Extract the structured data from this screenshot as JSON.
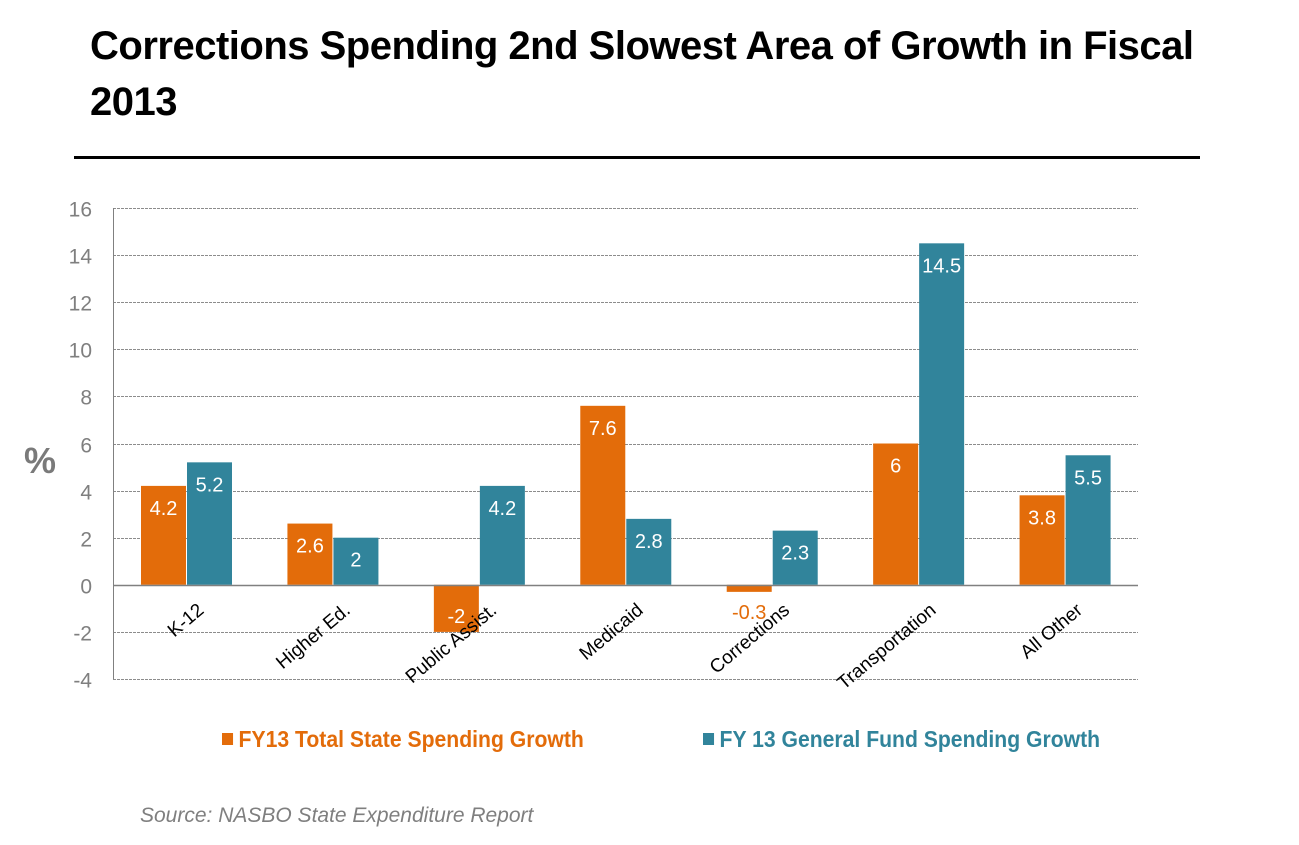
{
  "title": "Corrections Spending 2nd Slowest Area of Growth in Fiscal 2013",
  "y_unit_label": "%",
  "source": "Source: NASBO State Expenditure Report",
  "colors": {
    "series_total": "#E36C0A",
    "series_general": "#31849B",
    "axis": "#808080",
    "grid": "#8c8c8c",
    "tick_text": "#7f7f7f",
    "category_text": "#000000",
    "label_inside": "#ffffff"
  },
  "chart_data": {
    "type": "bar",
    "title": "Corrections Spending 2nd Slowest Area of Growth in Fiscal 2013",
    "xlabel": "",
    "ylabel": "%",
    "ylim": [
      -4,
      16
    ],
    "yticks": [
      16,
      14,
      12,
      10,
      8,
      6,
      4,
      2,
      0,
      -2,
      -4
    ],
    "grid": true,
    "legend_position": "bottom",
    "categories": [
      "K-12",
      "Higher Ed.",
      "Public Assist.",
      "Medicaid",
      "Corrections",
      "Transportation",
      "All Other"
    ],
    "series": [
      {
        "name": "FY13 Total State Spending Growth",
        "color": "#E36C0A",
        "values": [
          4.2,
          2.6,
          -2,
          7.6,
          -0.3,
          6,
          3.8
        ]
      },
      {
        "name": "FY 13 General Fund Spending Growth",
        "color": "#31849B",
        "values": [
          5.2,
          2,
          4.2,
          2.8,
          2.3,
          14.5,
          5.5
        ]
      }
    ],
    "source": "Source: NASBO State Expenditure Report"
  }
}
